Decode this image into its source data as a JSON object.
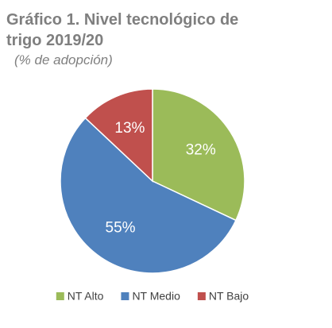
{
  "chart_data": {
    "type": "pie",
    "title": "Gráfico 1. Nivel tecnológico de trigo 2019/20",
    "subtitle": "(% de adopción)",
    "categories": [
      "NT Alto",
      "NT Medio",
      "NT Bajo"
    ],
    "values": [
      32,
      55,
      13
    ],
    "value_labels": [
      "32%",
      "55%",
      "13%"
    ],
    "colors": [
      "#9bbb59",
      "#4f81bd",
      "#c0504d"
    ],
    "legend": "bottom"
  }
}
